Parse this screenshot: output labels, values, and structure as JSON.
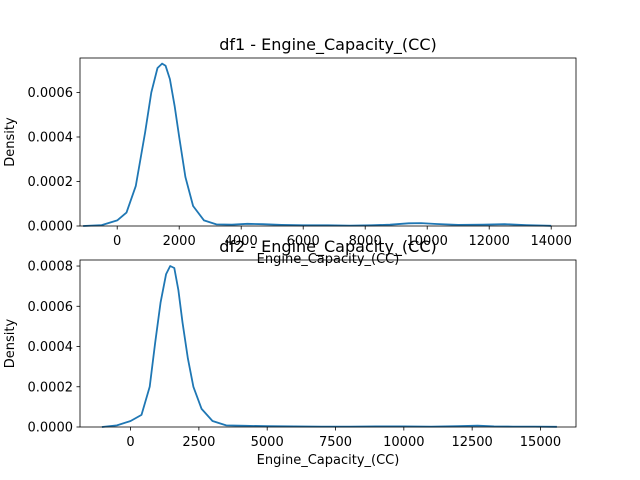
{
  "chart_data": [
    {
      "type": "line",
      "title": "df1 - Engine_Capacity_(CC)",
      "xlabel": "Engine_Capacity_(CC)",
      "ylabel": "Density",
      "xlim": [
        -1200,
        14800
      ],
      "ylim": [
        0,
        0.000755
      ],
      "xticks": [
        0,
        2000,
        4000,
        6000,
        8000,
        10000,
        12000,
        14000
      ],
      "xtick_labels": [
        "0",
        "2000",
        "4000",
        "6000",
        "8000",
        "10000",
        "12000",
        "14000"
      ],
      "yticks": [
        0,
        0.0002,
        0.0004,
        0.0006
      ],
      "ytick_labels": [
        "0.0000",
        "0.0002",
        "0.0004",
        "0.0006"
      ],
      "grid": false,
      "color": "#1f77b4",
      "series": [
        {
          "x": [
            -1100,
            -500,
            0,
            300,
            600,
            900,
            1100,
            1300,
            1450,
            1560,
            1700,
            1850,
            2000,
            2200,
            2450,
            2800,
            3200,
            3700,
            4200,
            4700,
            5300,
            6000,
            6800,
            7500,
            8200,
            8800,
            9400,
            9800,
            10300,
            11000,
            11800,
            12500,
            13200,
            14000
          ],
          "y": [
            0.0,
            4e-06,
            2.5e-05,
            6e-05,
            0.00018,
            0.00042,
            0.0006,
            0.00071,
            0.00073,
            0.00072,
            0.00066,
            0.00054,
            0.0004,
            0.00022,
            9e-05,
            2.5e-05,
            7e-06,
            6e-06,
            1e-05,
            8e-06,
            5e-06,
            3e-06,
            3e-06,
            2e-06,
            3e-06,
            6e-06,
            1.2e-05,
            1.3e-05,
            9e-06,
            5e-06,
            6e-06,
            8e-06,
            4e-06,
            1e-06
          ]
        }
      ]
    },
    {
      "type": "line",
      "title": "df2 - Engine_Capacity_(CC)",
      "xlabel": "Engine_Capacity_(CC)",
      "ylabel": "Density",
      "xlim": [
        -1850,
        16300
      ],
      "ylim": [
        0,
        0.00083
      ],
      "xticks": [
        0,
        2500,
        5000,
        7500,
        10000,
        12500,
        15000
      ],
      "xtick_labels": [
        "0",
        "2500",
        "5000",
        "7500",
        "10000",
        "12500",
        "15000"
      ],
      "yticks": [
        0,
        0.0002,
        0.0004,
        0.0006,
        0.0008
      ],
      "ytick_labels": [
        "0.0000",
        "0.0002",
        "0.0004",
        "0.0006",
        "0.0008"
      ],
      "grid": false,
      "color": "#1f77b4",
      "series": [
        {
          "x": [
            -1050,
            -500,
            0,
            400,
            700,
            900,
            1100,
            1300,
            1450,
            1600,
            1750,
            1900,
            2100,
            2300,
            2600,
            3000,
            3500,
            4200,
            5000,
            6000,
            7000,
            8000,
            9000,
            10000,
            11000,
            12000,
            12700,
            13300,
            14000,
            14800,
            15600
          ],
          "y": [
            0.0,
            8e-06,
            3e-05,
            6e-05,
            0.0002,
            0.00042,
            0.00062,
            0.00076,
            0.0008,
            0.00079,
            0.00068,
            0.00052,
            0.00034,
            0.0002,
            9e-05,
            3e-05,
            8e-06,
            6e-06,
            4e-06,
            3e-06,
            2e-06,
            2e-06,
            3e-06,
            3e-06,
            2e-06,
            4e-06,
            7e-06,
            3e-06,
            2e-06,
            2e-06,
            1e-06
          ]
        }
      ]
    }
  ]
}
